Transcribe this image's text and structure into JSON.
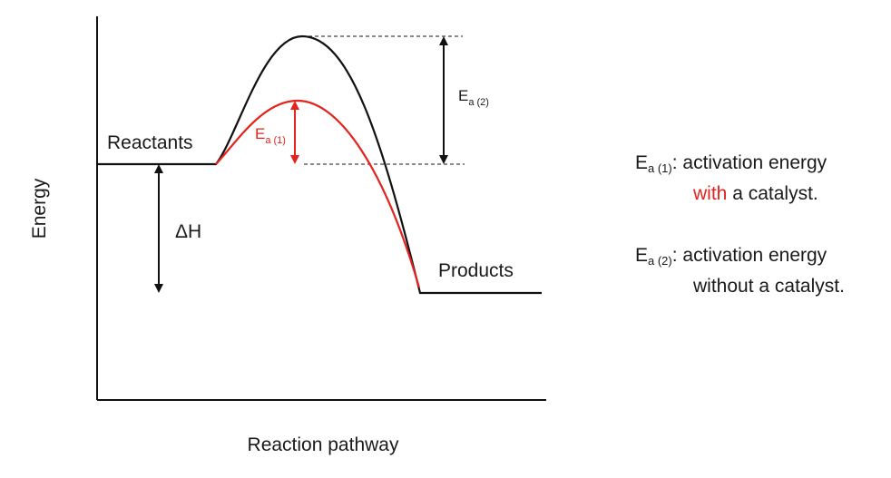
{
  "axes": {
    "y_label": "Energy",
    "x_label": "Reaction pathway"
  },
  "labels": {
    "reactants": "Reactants",
    "products": "Products",
    "delta_h": "ΔH",
    "ea1_main": "E",
    "ea1_sub": "a (1)",
    "ea2_main": "E",
    "ea2_sub": "a (2)"
  },
  "legend": {
    "item1": {
      "symbol": "E",
      "sub": "a (1)",
      "text1": ": activation energy",
      "highlight": "with",
      "text2": " a catalyst."
    },
    "item2": {
      "symbol": "E",
      "sub": "a (2)",
      "text1": ": activation energy",
      "text2": "without a catalyst."
    }
  },
  "colors": {
    "uncatalyzed": "#111111",
    "catalyzed": "#e3231d"
  }
}
